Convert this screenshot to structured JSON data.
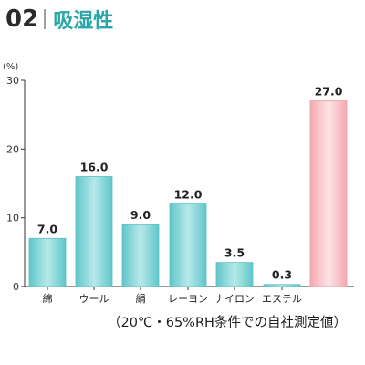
{
  "header": {
    "number": "02",
    "title": "吸湿性"
  },
  "colors": {
    "accent": "#2aa6a8",
    "bar_teal": "#7fd3d6",
    "bar_pink": "#f7c1c6"
  },
  "chart_data": {
    "type": "bar",
    "title": "",
    "xlabel": "",
    "ylabel": "(%)",
    "categories": [
      "綿",
      "ウール",
      "絹",
      "レーヨン",
      "ナイロン",
      "エステル",
      ""
    ],
    "values": [
      7.0,
      16.0,
      9.0,
      12.0,
      3.5,
      0.3,
      27.0
    ],
    "value_labels": [
      "7.0",
      "16.0",
      "9.0",
      "12.0",
      "3.5",
      "0.3",
      "27.0"
    ],
    "highlight_index": 6,
    "ylim": [
      0,
      30
    ],
    "yticks": [
      0,
      10,
      20,
      30
    ],
    "grid": false,
    "legend": "none"
  },
  "footnote": "（20℃・65%RH条件での自社測定値）"
}
